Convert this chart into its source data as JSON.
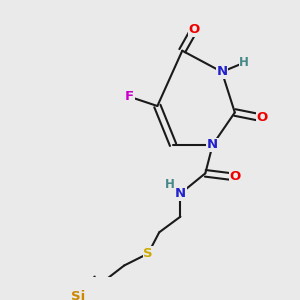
{
  "bg_color": "#eaeaea",
  "bond_color": "#1a1a1a",
  "bond_lw": 1.5,
  "dbo": 0.012,
  "atom_colors": {
    "O": "#ee0000",
    "N": "#2222cc",
    "F": "#cc00cc",
    "S": "#ccaa00",
    "Si": "#cc8800",
    "H": "#448888",
    "C": "#1a1a1a"
  },
  "fs": 8.5
}
